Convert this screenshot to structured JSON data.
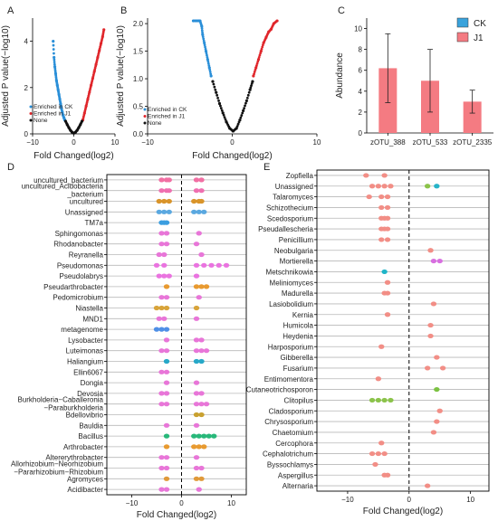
{
  "chart_data": [
    {
      "panel": "A",
      "type": "scatter",
      "xlabel": "Fold Changed(log2)",
      "ylabel": "Adjusted P value(−log10)",
      "xlim": [
        -10,
        10
      ],
      "ylim": [
        0,
        5
      ],
      "xticks": [
        "−10",
        "0",
        "10"
      ],
      "yticks": [
        "0",
        "2",
        "4"
      ],
      "legend": [
        "Enriched in CK",
        "Enriched in J1",
        "None"
      ],
      "legend_placement": "bottom-left",
      "colors": {
        "ck": "#2a8fd8",
        "j1": "#e0262b",
        "none": "#111111"
      },
      "series": [
        {
          "name": "Enriched in CK",
          "x": [
            -5,
            -4.8,
            -4.6,
            -4.4,
            -4.2,
            -4.0,
            -3.8,
            -3.6,
            -3.4,
            -3.2,
            -3.0,
            -2.8,
            -2.6,
            -2.4,
            -2.2
          ],
          "y": [
            4.0,
            3.3,
            2.9,
            2.6,
            2.3,
            2.1,
            1.9,
            1.7,
            1.5,
            1.3,
            1.1,
            0.95,
            0.8,
            0.7,
            0.6
          ]
        },
        {
          "name": "Enriched in J1",
          "x": [
            2.2,
            2.6,
            3.0,
            3.4,
            3.8,
            4.2,
            4.6,
            5.0,
            5.4,
            5.8,
            6.2,
            6.6,
            7.0,
            7.3
          ],
          "y": [
            0.6,
            0.9,
            1.2,
            1.5,
            1.8,
            2.1,
            2.4,
            2.7,
            3.0,
            3.3,
            3.6,
            3.9,
            4.2,
            4.5
          ]
        },
        {
          "name": "None",
          "x": [
            -2.0,
            -1.6,
            -1.2,
            -0.8,
            -0.4,
            0.0,
            0.4,
            0.8,
            1.2,
            1.6,
            2.0
          ],
          "y": [
            0.55,
            0.4,
            0.27,
            0.15,
            0.07,
            0.03,
            0.07,
            0.15,
            0.27,
            0.4,
            0.55
          ]
        }
      ]
    },
    {
      "panel": "B",
      "type": "scatter",
      "xlabel": "Fold Changed(log2)",
      "ylabel": "Adjusted P value(−log10)",
      "xlim": [
        -10,
        10
      ],
      "ylim": [
        0,
        2.1
      ],
      "xticks": [
        "−10",
        "0",
        "10"
      ],
      "yticks": [
        "0.0",
        "0.5",
        "1.0",
        "1.5",
        "2.0"
      ],
      "legend": [
        "Enriched in CK",
        "Enriched in J1",
        "None"
      ],
      "legend_placement": "bottom-left",
      "series": [
        {
          "name": "Enriched in CK",
          "x": [
            -4.6,
            -4.3,
            -4.0,
            -3.8,
            -3.6,
            -3.5,
            -3.3,
            -3.1,
            -2.9,
            -2.7,
            -2.5
          ],
          "y": [
            2.05,
            2.05,
            2.05,
            2.05,
            1.95,
            1.8,
            1.65,
            1.5,
            1.35,
            1.2,
            1.05
          ]
        },
        {
          "name": "Enriched in J1",
          "x": [
            2.5,
            2.8,
            3.1,
            3.4,
            3.7,
            4.0,
            4.3,
            4.6,
            4.9,
            5.3
          ],
          "y": [
            1.05,
            1.2,
            1.35,
            1.5,
            1.65,
            1.75,
            1.85,
            1.9,
            2.0,
            2.05
          ]
        },
        {
          "name": "None",
          "x": [
            -2.3,
            -1.9,
            -1.5,
            -1.1,
            -0.7,
            -0.3,
            0.1,
            0.5,
            0.9,
            1.3,
            1.7,
            2.1,
            2.4
          ],
          "y": [
            0.95,
            0.75,
            0.55,
            0.38,
            0.22,
            0.1,
            0.05,
            0.1,
            0.25,
            0.42,
            0.6,
            0.8,
            0.95
          ]
        }
      ]
    },
    {
      "panel": "C",
      "type": "bar",
      "categories": [
        "zOTU_388",
        "zOTU_533",
        "zOTU_2335"
      ],
      "values": [
        6.2,
        5.0,
        3.0
      ],
      "error": [
        3.3,
        3.0,
        1.1
      ],
      "ylabel": "Abundance",
      "ylim": [
        0,
        11
      ],
      "yticks": [
        "0",
        "2",
        "4",
        "6",
        "8",
        "10"
      ],
      "legend": [
        "CK",
        "J1"
      ],
      "legend_placement": "top-right",
      "colors": {
        "ck": "#3aa3dc",
        "j1": "#f47b82"
      }
    },
    {
      "panel": "D",
      "type": "scatter",
      "xlabel": "Fold Changed(log2)",
      "xlim": [
        -15,
        13
      ],
      "xticks": [
        "−10",
        "0",
        "10"
      ],
      "categories": [
        "uncultured_bacterium",
        "uncultured_Acidobacteria\n_bacterium",
        "uncultured",
        "Unassigned",
        "TM7a",
        "Sphingomonas",
        "Rhodanobacter",
        "Reyranella",
        "Pseudomonas",
        "Pseudolabrys",
        "Pseudarthrobacter",
        "Pedomicrobium",
        "Niastella",
        "MND1",
        "metagenome",
        "Lysobacter",
        "Luteimonas",
        "Haliangium",
        "Ellin6067",
        "Dongia",
        "Devosia",
        "Burkholderia−Caballeronia\n−Paraburkholderia",
        "Bdellovibrio",
        "Bauldia",
        "Bacillus",
        "Arthrobacter",
        "Altererythrobacter",
        "Allorhizobium−Neorhizobium\n−Pararhizobium−Rhizobium",
        "Agromyces",
        "Acidibacter"
      ],
      "points": [
        {
          "c": 0,
          "x": [
            -4,
            -3,
            -2.5,
            3,
            4
          ]
        },
        {
          "c": 1,
          "x": [
            -4,
            -3,
            -2.5,
            3,
            4
          ]
        },
        {
          "c": 2,
          "x": [
            -4.5,
            -3.5,
            -2.5,
            2.5,
            3.5,
            4
          ]
        },
        {
          "c": 3,
          "x": [
            -4.5,
            -3.5,
            -2.5,
            2.5,
            3.5,
            4.5
          ]
        },
        {
          "c": 4,
          "x": [
            -4,
            -3.5,
            -3
          ]
        },
        {
          "c": 5,
          "x": [
            -4,
            -3,
            3.5
          ]
        },
        {
          "c": 6,
          "x": [
            -4,
            -3,
            3
          ]
        },
        {
          "c": 7,
          "x": [
            -4.5,
            -3.5,
            4
          ]
        },
        {
          "c": 8,
          "x": [
            -5,
            -3.5,
            3,
            4.5,
            6,
            7.5,
            9
          ]
        },
        {
          "c": 9,
          "x": [
            -4.5,
            -3.5,
            -2.5,
            3
          ]
        },
        {
          "c": 10,
          "x": [
            -3,
            3,
            4,
            5
          ]
        },
        {
          "c": 11,
          "x": [
            -4,
            -3,
            3.5
          ]
        },
        {
          "c": 12,
          "x": [
            -5,
            -4,
            -3,
            3
          ]
        },
        {
          "c": 13,
          "x": [
            -4.5,
            -3.5,
            3
          ]
        },
        {
          "c": 14,
          "x": [
            -5,
            -4,
            -3
          ]
        },
        {
          "c": 15,
          "x": [
            -3,
            3,
            4
          ]
        },
        {
          "c": 16,
          "x": [
            -4,
            -3,
            3,
            4,
            5
          ]
        },
        {
          "c": 17,
          "x": [
            -3,
            3,
            4
          ]
        },
        {
          "c": 18,
          "x": [
            -4,
            -3
          ]
        },
        {
          "c": 19,
          "x": [
            -3,
            3
          ]
        },
        {
          "c": 20,
          "x": [
            -4,
            -3,
            3,
            4
          ]
        },
        {
          "c": 21,
          "x": [
            -4,
            -3,
            3,
            4,
            5
          ]
        },
        {
          "c": 22,
          "x": [
            3,
            4
          ]
        },
        {
          "c": 23,
          "x": [
            -3,
            3
          ]
        },
        {
          "c": 24,
          "x": [
            -3,
            2.5,
            3.5,
            4.5,
            5.5,
            6.5
          ]
        },
        {
          "c": 25,
          "x": [
            -3,
            2.5,
            3.5,
            4.5
          ]
        },
        {
          "c": 26,
          "x": [
            -4,
            -3,
            3
          ]
        },
        {
          "c": 27,
          "x": [
            -4,
            -3,
            3,
            4
          ]
        },
        {
          "c": 28,
          "x": [
            -3,
            3,
            4
          ]
        },
        {
          "c": 29,
          "x": [
            -4,
            -3,
            3.5
          ]
        }
      ],
      "colors": [
        "#f16fa3",
        "#ef6fb0",
        "#d9942a",
        "#5aa8e0",
        "#3b9ee0",
        "#e876d8",
        "#e876d8",
        "#e876d8",
        "#ea73e0",
        "#ea73e0",
        "#e89a30",
        "#e876d8",
        "#d8a43a",
        "#e876d8",
        "#4f8fe6",
        "#e876d8",
        "#e876d8",
        "#27a8c8",
        "#e876d8",
        "#e876d8",
        "#e876d8",
        "#e876d8",
        "#c9a130",
        "#e876d8",
        "#28b87a",
        "#e89a30",
        "#e876d8",
        "#e876d8",
        "#e09a3a",
        "#e876d8"
      ]
    },
    {
      "panel": "E",
      "type": "scatter",
      "xlabel": "Fold Changed(log2)",
      "xlim": [
        -15,
        13
      ],
      "xticks": [
        "−10",
        "0",
        "10"
      ],
      "categories": [
        "Zopfiella",
        "Unassigned",
        "Talaromyces",
        "Schizothecium",
        "Scedosporium",
        "Pseudallescheria",
        "Penicillium",
        "Neobulgaria",
        "Mortierella",
        "Metschnikowia",
        "Meliniomyces",
        "Madurella",
        "Lasiobolidium",
        "Kernia",
        "Humicola",
        "Heydenia",
        "Harposporium",
        "Gibberella",
        "Fusarium",
        "Entimomentora",
        "Cutaneotrichosporon",
        "Clitopilus",
        "Cladosporium",
        "Chrysosporium",
        "Chaetomium",
        "Cercophora",
        "Cephalotrichum",
        "Byssochlamys",
        "Aspergillus",
        "Alternaria"
      ],
      "points": [
        {
          "c": 0,
          "x": [
            -7,
            -4
          ]
        },
        {
          "c": 1,
          "x": [
            -6,
            -5,
            -4,
            -3,
            3,
            4.5
          ]
        },
        {
          "c": 2,
          "x": [
            -6.5,
            -4.5,
            -3.5
          ]
        },
        {
          "c": 3,
          "x": [
            -4.5,
            -3.5
          ]
        },
        {
          "c": 4,
          "x": [
            -4.5,
            -4,
            -3.5
          ]
        },
        {
          "c": 5,
          "x": [
            -4.5,
            -4,
            -3.5
          ]
        },
        {
          "c": 6,
          "x": [
            -4.5,
            -3.5
          ]
        },
        {
          "c": 7,
          "x": [
            3.5
          ]
        },
        {
          "c": 8,
          "x": [
            4,
            5
          ]
        },
        {
          "c": 9,
          "x": [
            -4
          ]
        },
        {
          "c": 10,
          "x": [
            -3.5
          ]
        },
        {
          "c": 11,
          "x": [
            -4,
            -3.5
          ]
        },
        {
          "c": 12,
          "x": [
            4
          ]
        },
        {
          "c": 13,
          "x": [
            -3.5
          ]
        },
        {
          "c": 14,
          "x": [
            3.5
          ]
        },
        {
          "c": 15,
          "x": [
            3.5
          ]
        },
        {
          "c": 16,
          "x": [
            -4.5
          ]
        },
        {
          "c": 17,
          "x": [
            4.5
          ]
        },
        {
          "c": 18,
          "x": [
            3,
            5.5
          ]
        },
        {
          "c": 19,
          "x": [
            -5
          ]
        },
        {
          "c": 20,
          "x": [
            4.5
          ]
        },
        {
          "c": 21,
          "x": [
            -6,
            -5,
            -4,
            -3
          ]
        },
        {
          "c": 22,
          "x": [
            5
          ]
        },
        {
          "c": 23,
          "x": [
            4.5
          ]
        },
        {
          "c": 24,
          "x": [
            4
          ]
        },
        {
          "c": 25,
          "x": [
            -4.5
          ]
        },
        {
          "c": 26,
          "x": [
            -6,
            -5,
            -4
          ]
        },
        {
          "c": 27,
          "x": [
            -5.5
          ]
        },
        {
          "c": 28,
          "x": [
            -4,
            -3.5
          ]
        },
        {
          "c": 29,
          "x": [
            3
          ]
        }
      ],
      "colors": {
        "default": "#f28e86",
        "unassigned_pos": [
          "#8bc34a",
          "#27b4c8"
        ],
        "mortierella": "#d86fe0",
        "metschnikowia": "#1fb5c8",
        "cutaneotrichosporon": "#7cc242",
        "clitopilus": "#8bc34a"
      }
    }
  ]
}
